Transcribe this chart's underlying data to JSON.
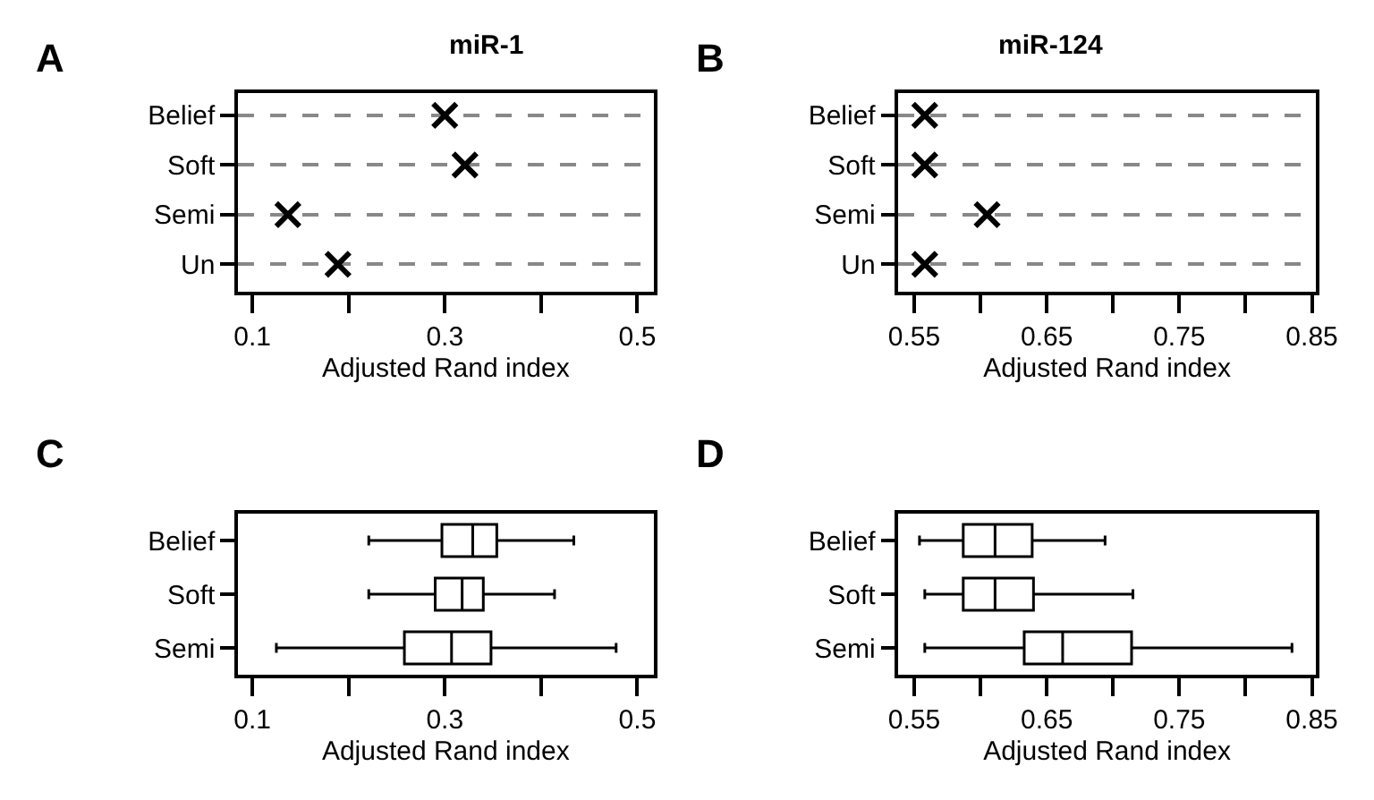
{
  "chart_data": [
    {
      "type": "scatter",
      "orientation": "horizontal",
      "title": "miR-1",
      "xlabel": "Adjusted Rand index",
      "annotations": [
        "A"
      ],
      "categories": [
        "Belief",
        "Soft",
        "Semi",
        "Un"
      ],
      "values": [
        0.3,
        0.321,
        0.137,
        0.189
      ],
      "color": "#000000",
      "marker": "cross",
      "grid": "y",
      "xlim": [
        0.085,
        0.517
      ],
      "xticks": [
        0.1,
        {
          "value": 0.2,
          "label": null
        },
        0.3,
        {
          "value": 0.4,
          "label": null
        },
        0.5
      ]
    },
    {
      "type": "scatter",
      "orientation": "horizontal",
      "title": "miR-124",
      "xlabel": "Adjusted Rand index",
      "annotations": [
        "B"
      ],
      "categories": [
        "Belief",
        "Soft",
        "Semi",
        "Un"
      ],
      "values": [
        0.558,
        0.558,
        0.605,
        0.558
      ],
      "color": "#000000",
      "marker": "cross",
      "grid": "y",
      "xlim": [
        0.538,
        0.853
      ],
      "xticks": [
        0.55,
        {
          "value": 0.6,
          "label": null
        },
        0.65,
        {
          "value": 0.7,
          "label": null
        },
        0.75,
        {
          "value": 0.8,
          "label": null
        },
        0.85
      ]
    },
    {
      "type": "box",
      "orientation": "horizontal",
      "xlabel": "Adjusted Rand index",
      "annotations": [
        "C"
      ],
      "categories": [
        "Belief",
        "Soft",
        "Semi"
      ],
      "color": "#000000",
      "boxes": [
        {
          "low": 0.221,
          "q1": 0.297,
          "median": 0.329,
          "q3": 0.354,
          "high": 0.434
        },
        {
          "low": 0.221,
          "q1": 0.29,
          "median": 0.318,
          "q3": 0.34,
          "high": 0.414
        },
        {
          "low": 0.125,
          "q1": 0.258,
          "median": 0.307,
          "q3": 0.348,
          "high": 0.478
        }
      ],
      "xlim": [
        0.085,
        0.517
      ],
      "xticks": [
        0.1,
        {
          "value": 0.2,
          "label": null
        },
        0.3,
        {
          "value": 0.4,
          "label": null
        },
        0.5
      ]
    },
    {
      "type": "box",
      "orientation": "horizontal",
      "xlabel": "Adjusted Rand index",
      "annotations": [
        "D"
      ],
      "categories": [
        "Belief",
        "Soft",
        "Semi"
      ],
      "color": "#000000",
      "boxes": [
        {
          "low": 0.554,
          "q1": 0.587,
          "median": 0.611,
          "q3": 0.639,
          "high": 0.694
        },
        {
          "low": 0.558,
          "q1": 0.587,
          "median": 0.611,
          "q3": 0.64,
          "high": 0.715
        },
        {
          "low": 0.558,
          "q1": 0.633,
          "median": 0.662,
          "q3": 0.714,
          "high": 0.835
        }
      ],
      "xlim": [
        0.538,
        0.853
      ],
      "xticks": [
        0.55,
        {
          "value": 0.6,
          "label": null
        },
        0.65,
        {
          "value": 0.7,
          "label": null
        },
        0.75,
        {
          "value": 0.8,
          "label": null
        },
        0.85
      ]
    }
  ]
}
